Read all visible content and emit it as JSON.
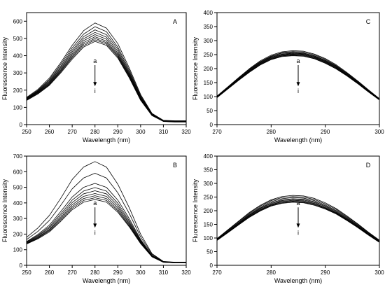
{
  "chart_data": [
    {
      "panel": "A",
      "type": "line",
      "xlabel": "Wavelength (nm)",
      "ylabel": "Fluorescence Intensity",
      "xlim": [
        250,
        320
      ],
      "ylim": [
        0,
        650
      ],
      "xticks": [
        250,
        260,
        270,
        280,
        290,
        300,
        310,
        320
      ],
      "yticks": [
        0,
        100,
        200,
        300,
        400,
        500,
        600
      ],
      "annotation": {
        "top": "a",
        "bottom": "i",
        "x": 280
      },
      "x": [
        250,
        255,
        260,
        265,
        270,
        275,
        280,
        285,
        290,
        295,
        300,
        305,
        310,
        315,
        320
      ],
      "series": [
        {
          "values": [
            158,
            205,
            270,
            360,
            460,
            545,
            590,
            560,
            470,
            330,
            175,
            65,
            25,
            22,
            22
          ]
        },
        {
          "values": [
            155,
            200,
            262,
            350,
            445,
            525,
            568,
            540,
            450,
            318,
            168,
            62,
            24,
            21,
            21
          ]
        },
        {
          "values": [
            152,
            196,
            256,
            340,
            432,
            510,
            550,
            522,
            438,
            308,
            163,
            60,
            23,
            20,
            20
          ]
        },
        {
          "values": [
            150,
            193,
            250,
            332,
            422,
            498,
            535,
            508,
            426,
            300,
            158,
            58,
            22,
            19,
            19
          ]
        },
        {
          "values": [
            148,
            190,
            245,
            325,
            412,
            487,
            522,
            496,
            416,
            293,
            154,
            57,
            21,
            18,
            18
          ]
        },
        {
          "values": [
            146,
            187,
            240,
            318,
            403,
            476,
            510,
            485,
            407,
            287,
            150,
            55,
            20,
            17,
            17
          ]
        },
        {
          "values": [
            144,
            184,
            236,
            312,
            395,
            467,
            500,
            476,
            400,
            282,
            147,
            54,
            19,
            16,
            16
          ]
        },
        {
          "values": [
            142,
            181,
            232,
            306,
            388,
            458,
            492,
            468,
            393,
            277,
            144,
            53,
            19,
            16,
            16
          ]
        },
        {
          "values": [
            140,
            178,
            228,
            300,
            380,
            450,
            483,
            460,
            386,
            272,
            141,
            52,
            18,
            15,
            15
          ]
        }
      ]
    },
    {
      "panel": "C",
      "type": "line",
      "xlabel": "Wavelength (nm)",
      "ylabel": "Fluorescence Intensity",
      "xlim": [
        270,
        300
      ],
      "ylim": [
        0,
        400
      ],
      "xticks": [
        270,
        280,
        290,
        300
      ],
      "yticks": [
        0,
        50,
        100,
        150,
        200,
        250,
        300,
        350,
        400
      ],
      "annotation": {
        "top": "a",
        "bottom": "i",
        "x": 285
      },
      "x": [
        270,
        272,
        274,
        276,
        278,
        280,
        282,
        284,
        286,
        288,
        290,
        292,
        294,
        296,
        298,
        300
      ],
      "series": [
        {
          "values": [
            102,
            135,
            168,
            200,
            228,
            248,
            260,
            264,
            262,
            252,
            236,
            214,
            186,
            156,
            124,
            93
          ]
        },
        {
          "values": [
            101,
            134,
            166,
            198,
            225,
            245,
            257,
            261,
            259,
            249,
            233,
            211,
            184,
            154,
            122,
            92
          ]
        },
        {
          "values": [
            100,
            133,
            165,
            196,
            223,
            243,
            255,
            258,
            256,
            246,
            230,
            209,
            182,
            152,
            121,
            91
          ]
        },
        {
          "values": [
            99,
            132,
            163,
            194,
            221,
            241,
            252,
            256,
            254,
            244,
            228,
            207,
            180,
            151,
            120,
            90
          ]
        },
        {
          "values": [
            99,
            131,
            162,
            193,
            219,
            239,
            250,
            254,
            252,
            242,
            226,
            205,
            178,
            150,
            119,
            90
          ]
        },
        {
          "values": [
            98,
            130,
            161,
            191,
            217,
            237,
            248,
            252,
            250,
            240,
            224,
            203,
            177,
            149,
            118,
            89
          ]
        },
        {
          "values": [
            97,
            129,
            160,
            190,
            216,
            235,
            246,
            250,
            248,
            238,
            222,
            202,
            176,
            148,
            117,
            89
          ]
        },
        {
          "values": [
            97,
            128,
            159,
            189,
            214,
            233,
            245,
            248,
            246,
            236,
            220,
            200,
            175,
            147,
            117,
            88
          ]
        },
        {
          "values": [
            96,
            127,
            158,
            187,
            213,
            232,
            243,
            246,
            244,
            235,
            219,
            199,
            174,
            146,
            116,
            88
          ]
        }
      ]
    },
    {
      "panel": "B",
      "type": "line",
      "xlabel": "Wavelength (nm)",
      "ylabel": "Fluorescence Intensity",
      "xlim": [
        250,
        320
      ],
      "ylim": [
        0,
        700
      ],
      "xticks": [
        250,
        260,
        270,
        280,
        290,
        300,
        310,
        320
      ],
      "yticks": [
        0,
        100,
        200,
        300,
        400,
        500,
        600,
        700
      ],
      "annotation": {
        "top": "a",
        "bottom": "i",
        "x": 280
      },
      "x": [
        250,
        255,
        260,
        265,
        270,
        275,
        280,
        285,
        290,
        295,
        300,
        305,
        310,
        315,
        320
      ],
      "series": [
        {
          "values": [
            180,
            240,
            320,
            430,
            550,
            630,
            665,
            630,
            520,
            370,
            200,
            75,
            25,
            20,
            20
          ]
        },
        {
          "values": [
            165,
            218,
            288,
            385,
            490,
            560,
            590,
            560,
            465,
            333,
            182,
            70,
            24,
            19,
            19
          ]
        },
        {
          "values": [
            152,
            198,
            258,
            345,
            438,
            500,
            525,
            500,
            418,
            300,
            166,
            64,
            23,
            18,
            18
          ]
        },
        {
          "values": [
            148,
            192,
            248,
            330,
            418,
            476,
            498,
            476,
            398,
            287,
            160,
            62,
            22,
            18,
            18
          ]
        },
        {
          "values": [
            145,
            187,
            240,
            318,
            402,
            458,
            478,
            458,
            383,
            277,
            155,
            60,
            21,
            17,
            17
          ]
        },
        {
          "values": [
            142,
            182,
            232,
            307,
            388,
            442,
            460,
            442,
            370,
            268,
            150,
            58,
            21,
            17,
            17
          ]
        },
        {
          "values": [
            140,
            178,
            226,
            298,
            376,
            428,
            446,
            428,
            359,
            260,
            146,
            57,
            20,
            16,
            16
          ]
        },
        {
          "values": [
            138,
            174,
            220,
            290,
            366,
            416,
            433,
            416,
            349,
            253,
            142,
            55,
            20,
            16,
            16
          ]
        },
        {
          "values": [
            136,
            170,
            214,
            282,
            356,
            405,
            422,
            405,
            340,
            247,
            139,
            54,
            19,
            16,
            16
          ]
        }
      ]
    },
    {
      "panel": "D",
      "type": "line",
      "xlabel": "Wavelength (nm)",
      "ylabel": "Fluorescence Intensity",
      "xlim": [
        270,
        300
      ],
      "ylim": [
        0,
        400
      ],
      "xticks": [
        270,
        280,
        290,
        300
      ],
      "yticks": [
        0,
        50,
        100,
        150,
        200,
        250,
        300,
        350,
        400
      ],
      "annotation": {
        "top": "a",
        "bottom": "i",
        "x": 285
      },
      "x": [
        270,
        272,
        274,
        276,
        278,
        280,
        282,
        284,
        286,
        288,
        290,
        292,
        294,
        296,
        298,
        300
      ],
      "series": [
        {
          "values": [
            98,
            130,
            162,
            194,
            220,
            240,
            252,
            256,
            254,
            245,
            229,
            208,
            181,
            152,
            121,
            92
          ]
        },
        {
          "values": [
            97,
            128,
            160,
            191,
            217,
            237,
            248,
            252,
            250,
            241,
            225,
            205,
            178,
            150,
            119,
            91
          ]
        },
        {
          "values": [
            96,
            126,
            157,
            188,
            213,
            233,
            244,
            248,
            246,
            237,
            221,
            201,
            175,
            147,
            117,
            89
          ]
        },
        {
          "values": [
            95,
            124,
            155,
            185,
            210,
            229,
            240,
            244,
            242,
            233,
            218,
            198,
            172,
            145,
            115,
            88
          ]
        },
        {
          "values": [
            94,
            123,
            153,
            183,
            208,
            226,
            237,
            241,
            239,
            230,
            215,
            195,
            170,
            143,
            114,
            87
          ]
        },
        {
          "values": [
            93,
            122,
            152,
            181,
            205,
            223,
            234,
            238,
            236,
            227,
            212,
            193,
            168,
            141,
            113,
            86
          ]
        },
        {
          "values": [
            92,
            121,
            150,
            179,
            203,
            221,
            232,
            235,
            233,
            225,
            210,
            191,
            166,
            140,
            112,
            85
          ]
        },
        {
          "values": [
            92,
            120,
            149,
            177,
            201,
            219,
            229,
            233,
            231,
            222,
            208,
            189,
            165,
            139,
            111,
            85
          ]
        },
        {
          "values": [
            91,
            119,
            148,
            176,
            199,
            217,
            227,
            231,
            229,
            220,
            206,
            188,
            164,
            138,
            110,
            84
          ]
        }
      ]
    }
  ]
}
